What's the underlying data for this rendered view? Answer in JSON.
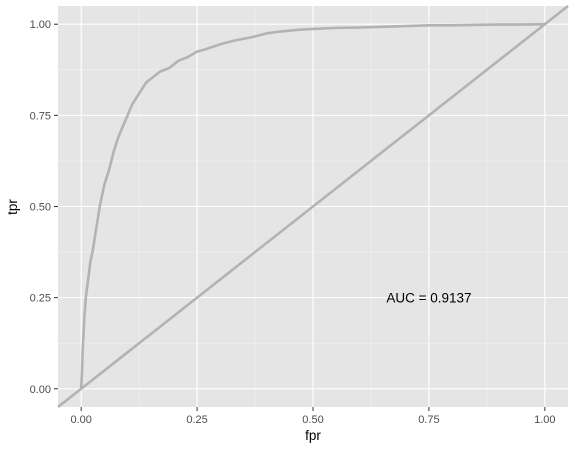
{
  "chart_data": {
    "type": "line",
    "title": "",
    "xlabel": "fpr",
    "ylabel": "tpr",
    "xlim": [
      -0.05,
      1.05
    ],
    "ylim": [
      -0.05,
      1.05
    ],
    "xticks": [
      0,
      0.25,
      0.5,
      0.75,
      1
    ],
    "yticks": [
      0,
      0.25,
      0.5,
      0.75,
      1
    ],
    "xtick_labels": [
      "0.00",
      "0.25",
      "0.50",
      "0.75",
      "1.00"
    ],
    "ytick_labels": [
      "0.00",
      "0.25",
      "0.50",
      "0.75",
      "1.00"
    ],
    "series": [
      {
        "name": "ROC curve",
        "x": [
          0,
          0.002,
          0.003,
          0.005,
          0.007,
          0.01,
          0.015,
          0.02,
          0.025,
          0.03,
          0.035,
          0.04,
          0.05,
          0.06,
          0.07,
          0.08,
          0.09,
          0.1,
          0.11,
          0.12,
          0.13,
          0.14,
          0.15,
          0.17,
          0.19,
          0.21,
          0.23,
          0.25,
          0.27,
          0.3,
          0.33,
          0.37,
          0.4,
          0.43,
          0.47,
          0.5,
          0.55,
          0.6,
          0.65,
          0.7,
          0.75,
          0.8,
          0.85,
          0.9,
          0.95,
          1.0
        ],
        "y": [
          0,
          0.05,
          0.1,
          0.15,
          0.2,
          0.25,
          0.3,
          0.35,
          0.38,
          0.42,
          0.46,
          0.5,
          0.56,
          0.6,
          0.65,
          0.69,
          0.72,
          0.75,
          0.78,
          0.8,
          0.82,
          0.84,
          0.85,
          0.87,
          0.88,
          0.9,
          0.91,
          0.925,
          0.932,
          0.945,
          0.955,
          0.965,
          0.975,
          0.98,
          0.985,
          0.987,
          0.99,
          0.991,
          0.993,
          0.995,
          0.997,
          0.997,
          0.998,
          0.999,
          0.999,
          1.0
        ]
      },
      {
        "name": "diagonal",
        "x": [
          -0.05,
          1.05
        ],
        "y": [
          -0.05,
          1.05
        ]
      }
    ],
    "annotations": [
      {
        "text": "AUC = 0.9137",
        "x": 0.75,
        "y": 0.25
      }
    ],
    "grid": true,
    "legend": "none"
  }
}
